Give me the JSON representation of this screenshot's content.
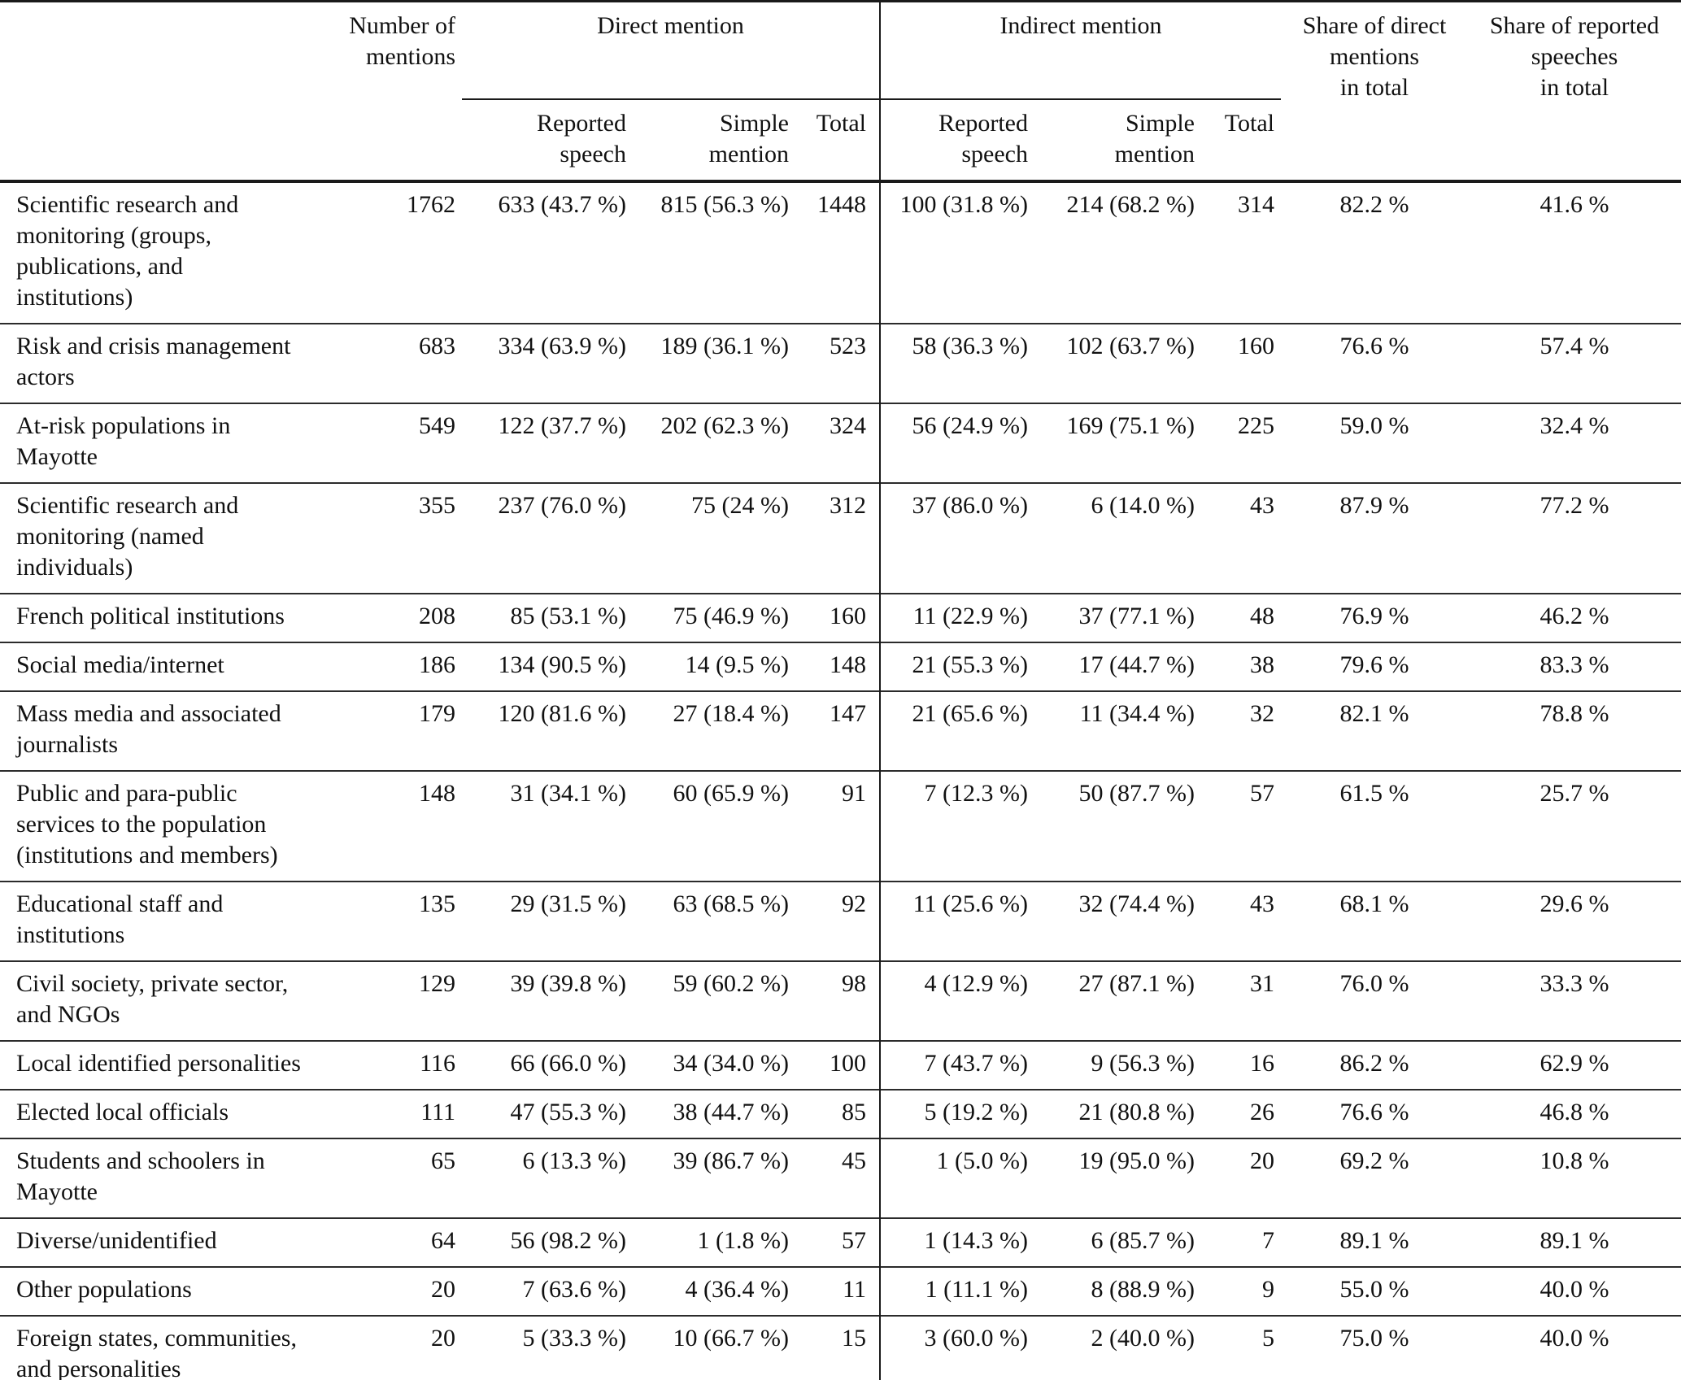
{
  "table": {
    "column_headers": {
      "row_label": "",
      "number_of_mentions": "Number of\nmentions",
      "direct_mention": "Direct mention",
      "indirect_mention": "Indirect mention",
      "reported_speech": "Reported\nspeech",
      "simple_mention": "Simple\nmention",
      "total": "Total",
      "share_of_direct": "Share of direct\nmentions\nin total",
      "share_of_reported": "Share of reported\nspeeches\nin total"
    },
    "rows": [
      {
        "label": "Scientific research and\nmonitoring (groups,\npublications, and\ninstitutions)",
        "mentions": "1762",
        "direct_reported": "633 (43.7 %)",
        "direct_simple": "815 (56.3 %)",
        "direct_total": "1448",
        "indirect_reported": "100 (31.8 %)",
        "indirect_simple": "214 (68.2 %)",
        "indirect_total": "314",
        "share_direct": "82.2 %",
        "share_reported": "41.6 %"
      },
      {
        "label": "Risk and crisis management\nactors",
        "mentions": "683",
        "direct_reported": "334 (63.9 %)",
        "direct_simple": "189 (36.1 %)",
        "direct_total": "523",
        "indirect_reported": "58 (36.3 %)",
        "indirect_simple": "102 (63.7 %)",
        "indirect_total": "160",
        "share_direct": "76.6 %",
        "share_reported": "57.4 %"
      },
      {
        "label": "At-risk populations in\nMayotte",
        "mentions": "549",
        "direct_reported": "122 (37.7 %)",
        "direct_simple": "202 (62.3 %)",
        "direct_total": "324",
        "indirect_reported": "56 (24.9 %)",
        "indirect_simple": "169 (75.1 %)",
        "indirect_total": "225",
        "share_direct": "59.0 %",
        "share_reported": "32.4 %"
      },
      {
        "label": "Scientific research and\nmonitoring (named\nindividuals)",
        "mentions": "355",
        "direct_reported": "237 (76.0 %)",
        "direct_simple": "75 (24 %)",
        "direct_total": "312",
        "indirect_reported": "37 (86.0 %)",
        "indirect_simple": "6 (14.0 %)",
        "indirect_total": "43",
        "share_direct": "87.9 %",
        "share_reported": "77.2 %"
      },
      {
        "label": "French political institutions",
        "mentions": "208",
        "direct_reported": "85 (53.1 %)",
        "direct_simple": "75 (46.9 %)",
        "direct_total": "160",
        "indirect_reported": "11 (22.9 %)",
        "indirect_simple": "37 (77.1 %)",
        "indirect_total": "48",
        "share_direct": "76.9 %",
        "share_reported": "46.2 %"
      },
      {
        "label": "Social media/internet",
        "mentions": "186",
        "direct_reported": "134 (90.5 %)",
        "direct_simple": "14 (9.5 %)",
        "direct_total": "148",
        "indirect_reported": "21 (55.3 %)",
        "indirect_simple": "17 (44.7 %)",
        "indirect_total": "38",
        "share_direct": "79.6 %",
        "share_reported": "83.3 %"
      },
      {
        "label": "Mass media and associated\njournalists",
        "mentions": "179",
        "direct_reported": "120 (81.6 %)",
        "direct_simple": "27 (18.4 %)",
        "direct_total": "147",
        "indirect_reported": "21 (65.6 %)",
        "indirect_simple": "11 (34.4 %)",
        "indirect_total": "32",
        "share_direct": "82.1 %",
        "share_reported": "78.8 %"
      },
      {
        "label": "Public and para-public\nservices to the population\n(institutions and members)",
        "mentions": "148",
        "direct_reported": "31 (34.1 %)",
        "direct_simple": "60 (65.9 %)",
        "direct_total": "91",
        "indirect_reported": "7 (12.3 %)",
        "indirect_simple": "50 (87.7 %)",
        "indirect_total": "57",
        "share_direct": "61.5 %",
        "share_reported": "25.7 %"
      },
      {
        "label": "Educational staff and\ninstitutions",
        "mentions": "135",
        "direct_reported": "29 (31.5 %)",
        "direct_simple": "63 (68.5 %)",
        "direct_total": "92",
        "indirect_reported": "11 (25.6 %)",
        "indirect_simple": "32 (74.4 %)",
        "indirect_total": "43",
        "share_direct": "68.1 %",
        "share_reported": "29.6 %"
      },
      {
        "label": "Civil society, private sector,\nand NGOs",
        "mentions": "129",
        "direct_reported": "39 (39.8 %)",
        "direct_simple": "59 (60.2 %)",
        "direct_total": "98",
        "indirect_reported": "4 (12.9 %)",
        "indirect_simple": "27 (87.1 %)",
        "indirect_total": "31",
        "share_direct": "76.0 %",
        "share_reported": "33.3 %"
      },
      {
        "label": "Local identified personalities",
        "mentions": "116",
        "direct_reported": "66 (66.0 %)",
        "direct_simple": "34 (34.0 %)",
        "direct_total": "100",
        "indirect_reported": "7 (43.7 %)",
        "indirect_simple": "9 (56.3 %)",
        "indirect_total": "16",
        "share_direct": "86.2 %",
        "share_reported": "62.9 %"
      },
      {
        "label": "Elected local officials",
        "mentions": "111",
        "direct_reported": "47 (55.3 %)",
        "direct_simple": "38 (44.7 %)",
        "direct_total": "85",
        "indirect_reported": "5 (19.2 %)",
        "indirect_simple": "21 (80.8 %)",
        "indirect_total": "26",
        "share_direct": "76.6 %",
        "share_reported": "46.8 %"
      },
      {
        "label": "Students and schoolers in\nMayotte",
        "mentions": "65",
        "direct_reported": "6 (13.3 %)",
        "direct_simple": "39 (86.7 %)",
        "direct_total": "45",
        "indirect_reported": "1 (5.0 %)",
        "indirect_simple": "19 (95.0 %)",
        "indirect_total": "20",
        "share_direct": "69.2 %",
        "share_reported": "10.8 %"
      },
      {
        "label": "Diverse/unidentified",
        "mentions": "64",
        "direct_reported": "56 (98.2 %)",
        "direct_simple": "1 (1.8 %)",
        "direct_total": "57",
        "indirect_reported": "1 (14.3 %)",
        "indirect_simple": "6 (85.7 %)",
        "indirect_total": "7",
        "share_direct": "89.1 %",
        "share_reported": "89.1 %"
      },
      {
        "label": "Other populations",
        "mentions": "20",
        "direct_reported": "7 (63.6 %)",
        "direct_simple": "4 (36.4 %)",
        "direct_total": "11",
        "indirect_reported": "1 (11.1 %)",
        "indirect_simple": "8 (88.9 %)",
        "indirect_total": "9",
        "share_direct": "55.0 %",
        "share_reported": "40.0 %"
      },
      {
        "label": "Foreign states, communities,\nand personalities",
        "mentions": "20",
        "direct_reported": "5 (33.3 %)",
        "direct_simple": "10 (66.7 %)",
        "direct_total": "15",
        "indirect_reported": "3 (60.0 %)",
        "indirect_simple": "2 (40.0 %)",
        "indirect_total": "5",
        "share_direct": "75.0 %",
        "share_reported": "40.0 %"
      }
    ]
  }
}
